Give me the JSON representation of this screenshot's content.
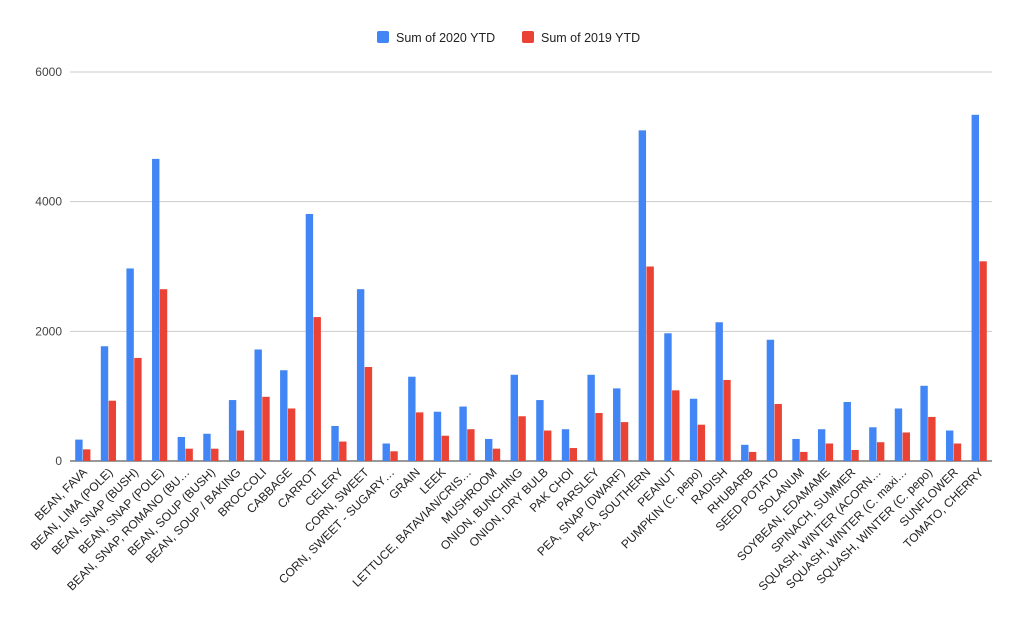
{
  "chart_data": {
    "type": "bar",
    "title": "",
    "xlabel": "",
    "ylabel": "",
    "ylim": [
      0,
      6000
    ],
    "yticks": [
      "0",
      "2000",
      "4000",
      "6000"
    ],
    "grid": true,
    "legend_position": "top",
    "categories": [
      "BEAN, FAVA",
      "BEAN, LIMA (POLE)",
      "BEAN, SNAP (BUSH)",
      "BEAN, SNAP (POLE)",
      "BEAN, SNAP, ROMANO (BU…",
      "BEAN, SOUP (BUSH)",
      "BEAN, SOUP / BAKING",
      "BROCCOLI",
      "CABBAGE",
      "CARROT",
      "CELERY",
      "CORN, SWEET",
      "CORN, SWEET - SUGARY…",
      "GRAIN",
      "LEEK",
      "LETTUCE, BATAVIAN/CRIS…",
      "MUSHROOM",
      "ONION, BUNCHING",
      "ONION, DRY BULB",
      "PAK CHOI",
      "PARSLEY",
      "PEA, SNAP (DWARF)",
      "PEA, SOUTHERN",
      "PEANUT",
      "PUMPKIN (C. pepo)",
      "RADISH",
      "RHUBARB",
      "SEED POTATO",
      "SOLANUM",
      "SOYBEAN, EDAMAME",
      "SPINACH, SUMMER",
      "SQUASH, WINTER (ACORN…",
      "SQUASH, WINTER (C. maxi…",
      "SQUASH, WINTER (C. pepo)",
      "SUNFLOWER",
      "TOMATO, CHERRY"
    ],
    "series": [
      {
        "name": "Sum of 2020 YTD",
        "color": "#4285f4",
        "values": [
          330,
          1770,
          2970,
          4660,
          370,
          420,
          940,
          1720,
          1400,
          3810,
          540,
          2650,
          270,
          1300,
          760,
          840,
          340,
          1330,
          940,
          490,
          1330,
          1120,
          5100,
          1970,
          960,
          2140,
          250,
          1870,
          340,
          490,
          910,
          520,
          810,
          1160,
          470,
          5340
        ]
      },
      {
        "name": "Sum of 2019 YTD",
        "color": "#ea4335",
        "values": [
          180,
          930,
          1590,
          2650,
          190,
          190,
          470,
          990,
          810,
          2220,
          300,
          1450,
          150,
          750,
          390,
          490,
          190,
          690,
          470,
          200,
          740,
          600,
          3000,
          1090,
          560,
          1250,
          140,
          880,
          140,
          270,
          170,
          290,
          440,
          680,
          270,
          3080
        ]
      }
    ]
  }
}
